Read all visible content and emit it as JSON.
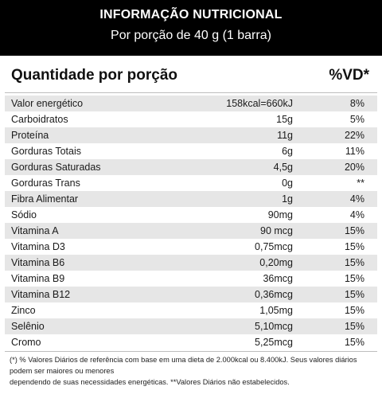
{
  "header": {
    "title": "INFORMAÇÃO NUTRICIONAL",
    "subtitle": "Por porção de 40 g (1 barra)"
  },
  "table": {
    "col_left": "Quantidade por porção",
    "col_right": "%VD*",
    "rows": [
      {
        "name": "Valor energético",
        "qty": "158kcal=660kJ",
        "vd": "8%"
      },
      {
        "name": "Carboidratos",
        "qty": "15g",
        "vd": "5%"
      },
      {
        "name": "Proteína",
        "qty": "11g",
        "vd": "22%"
      },
      {
        "name": "Gorduras Totais",
        "qty": "6g",
        "vd": "11%"
      },
      {
        "name": "Gorduras Saturadas",
        "qty": "4,5g",
        "vd": "20%"
      },
      {
        "name": "Gorduras Trans",
        "qty": "0g",
        "vd": "**"
      },
      {
        "name": "Fibra Alimentar",
        "qty": "1g",
        "vd": "4%"
      },
      {
        "name": "Sódio",
        "qty": "90mg",
        "vd": "4%"
      },
      {
        "name": "Vitamina A",
        "qty": "90 mcg",
        "vd": "15%"
      },
      {
        "name": "Vitamina D3",
        "qty": "0,75mcg",
        "vd": "15%"
      },
      {
        "name": "Vitamina B6",
        "qty": "0,20mg",
        "vd": "15%"
      },
      {
        "name": "Vitamina B9",
        "qty": "36mcg",
        "vd": "15%"
      },
      {
        "name": "Vitamina B12",
        "qty": "0,36mcg",
        "vd": "15%"
      },
      {
        "name": "Zinco",
        "qty": "1,05mg",
        "vd": "15%"
      },
      {
        "name": "Selênio",
        "qty": "5,10mcg",
        "vd": "15%"
      },
      {
        "name": "Cromo",
        "qty": "5,25mcg",
        "vd": "15%"
      }
    ]
  },
  "footnote": {
    "line1": "(*) % Valores Diários de referência com base em uma dieta de 2.000kcal ou 8.400kJ. Seus valores diários podem ser maiores ou menores",
    "line2": "dependendo de suas necessidades energéticas. **Valores Diários não estabelecidos."
  }
}
